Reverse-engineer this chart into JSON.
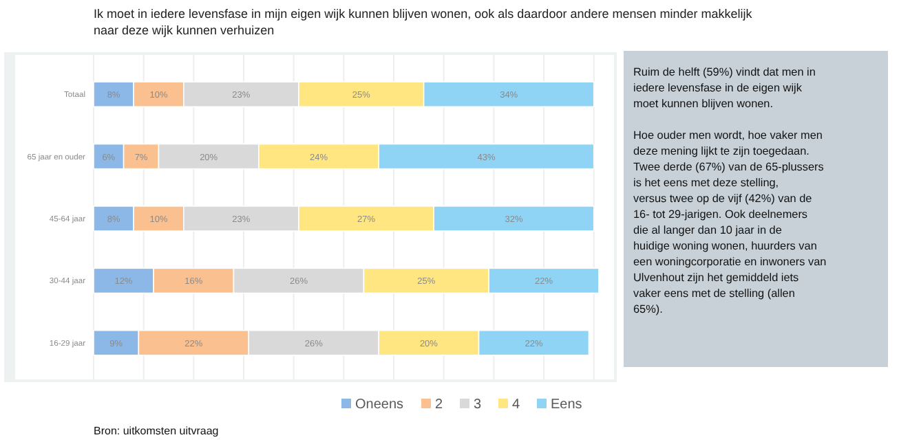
{
  "chart_data": {
    "type": "bar",
    "orientation": "horizontal",
    "stacked": true,
    "title": "Ik moet in iedere levensfase in mijn eigen wijk kunnen blijven wonen, ook als daardoor andere mensen minder makkelijk naar deze wijk kunnen verhuizen",
    "categories": [
      "Totaal",
      "65 jaar en ouder",
      "45-64 jaar",
      "30-44 jaar",
      "16-29 jaar"
    ],
    "series": [
      {
        "name": "Oneens",
        "color": "#8cb8e8",
        "values": [
          8,
          6,
          8,
          12,
          9
        ],
        "value_labels": [
          "8%",
          "6%",
          "8%",
          "12%",
          "9%"
        ]
      },
      {
        "name": "2",
        "color": "#fbc08f",
        "values": [
          10,
          7,
          10,
          16,
          22
        ],
        "value_labels": [
          "10%",
          "7%",
          "10%",
          "16%",
          "22%"
        ]
      },
      {
        "name": "3",
        "color": "#d9d9d9",
        "values": [
          23,
          20,
          23,
          26,
          26
        ],
        "value_labels": [
          "23%",
          "20%",
          "23%",
          "26%",
          "26%"
        ]
      },
      {
        "name": "4",
        "color": "#ffe680",
        "values": [
          25,
          24,
          27,
          25,
          20
        ],
        "value_labels": [
          "25%",
          "24%",
          "27%",
          "25%",
          "20%"
        ]
      },
      {
        "name": "Eens",
        "color": "#8fd3f5",
        "values": [
          34,
          43,
          32,
          22,
          22
        ],
        "value_labels": [
          "34%",
          "43%",
          "32%",
          "22%",
          "22%"
        ]
      }
    ],
    "xlim": [
      0,
      101
    ],
    "xticks": [
      {
        "value": 0,
        "label": null
      },
      {
        "value": 10,
        "label": null
      },
      {
        "value": 20,
        "label": null
      },
      {
        "value": 30,
        "label": null
      },
      {
        "value": 40,
        "label": null
      },
      {
        "value": 50,
        "label": null
      },
      {
        "value": 60,
        "label": null
      },
      {
        "value": 70,
        "label": null
      },
      {
        "value": 80,
        "label": null
      },
      {
        "value": 90,
        "label": null
      },
      {
        "value": 100,
        "label": null
      }
    ],
    "tick_labels": "y",
    "grid": "x",
    "legend": "bottom",
    "annotations": [
      "Ruim de helft (59%) vindt dat men in iedere levensfase in de eigen wijk moet kunnen blijven wonen.",
      "Hoe ouder men wordt, hoe vaker men deze mening lijkt te zijn toegedaan. Twee derde (67%) van de 65-plussers is het eens met deze stelling, versus twee op de vijf (42%) van de 16- tot 29-jarigen. Ook deelnemers die al langer dan 10 jaar in de huidige woning wonen, huurders van een woningcorporatie en inwoners van Ulvenhout zijn het gemiddeld iets vaker eens met de stelling (allen 65%).",
      "Bron: uitkomsten uitvraag"
    ]
  }
}
